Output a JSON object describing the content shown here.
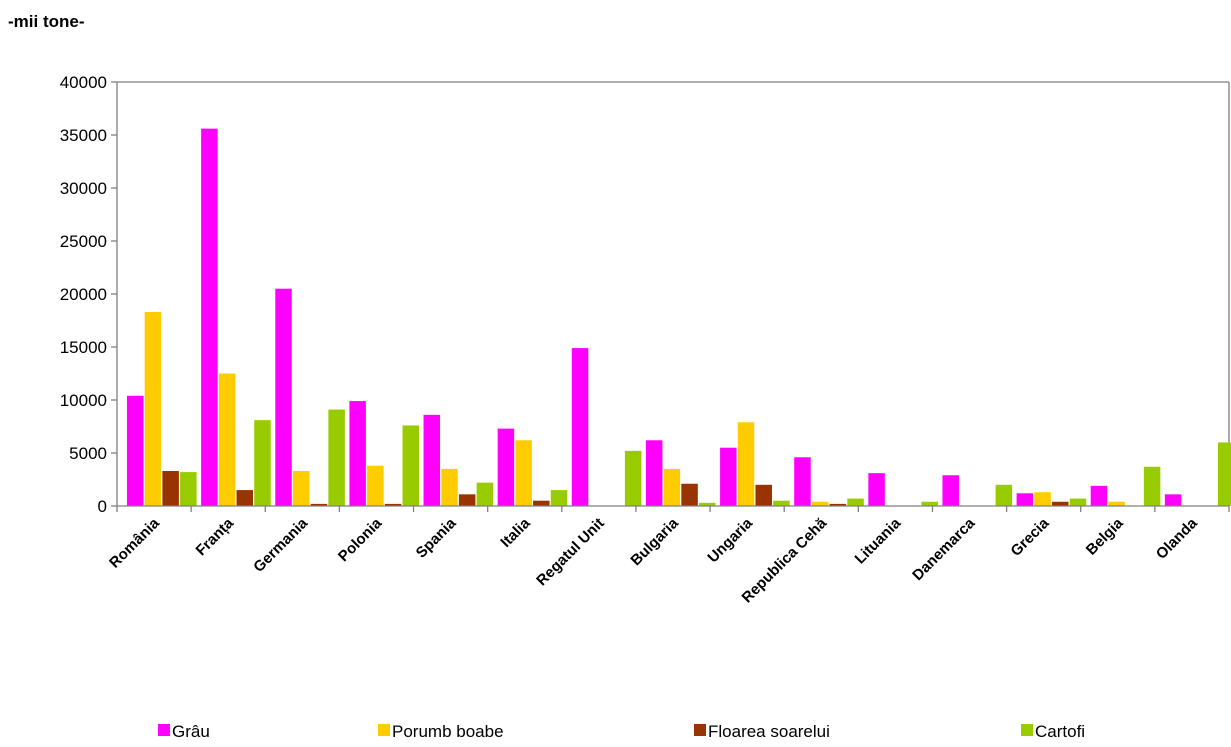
{
  "unit_label": "-mii tone-",
  "chart_data": {
    "type": "bar",
    "title": "",
    "xlabel": "",
    "ylabel": "",
    "ylim": [
      0,
      40000
    ],
    "yticks": [
      0,
      5000,
      10000,
      15000,
      20000,
      25000,
      30000,
      35000,
      40000
    ],
    "grid": false,
    "legend_position": "bottom",
    "categories": [
      "România",
      "Franța",
      "Germania",
      "Polonia",
      "Spania",
      "Italia",
      "Regatul Unit",
      "Bulgaria",
      "Ungaria",
      "Republica Cehă",
      "Lituania",
      "Danemarca",
      "Grecia",
      "Belgia",
      "Olanda"
    ],
    "series": [
      {
        "name": "Grâu",
        "color": "#ff00ff",
        "values": [
          10400,
          35600,
          20500,
          9900,
          8600,
          7300,
          14900,
          6200,
          5500,
          4600,
          3100,
          2900,
          1200,
          1900,
          1100
        ]
      },
      {
        "name": "Porumb boabe",
        "color": "#ffcc00",
        "values": [
          18300,
          12500,
          3300,
          3800,
          3500,
          6200,
          0,
          3500,
          7900,
          400,
          0,
          0,
          1300,
          400,
          0
        ]
      },
      {
        "name": "Floarea soarelui",
        "color": "#993300",
        "values": [
          3300,
          1500,
          200,
          200,
          1100,
          500,
          0,
          2100,
          2000,
          200,
          0,
          0,
          400,
          0,
          0
        ]
      },
      {
        "name": "Cartofi",
        "color": "#99cc00",
        "values": [
          3200,
          8100,
          9100,
          7600,
          2200,
          1500,
          5200,
          300,
          500,
          700,
          400,
          2000,
          700,
          3700,
          6000
        ]
      }
    ]
  }
}
